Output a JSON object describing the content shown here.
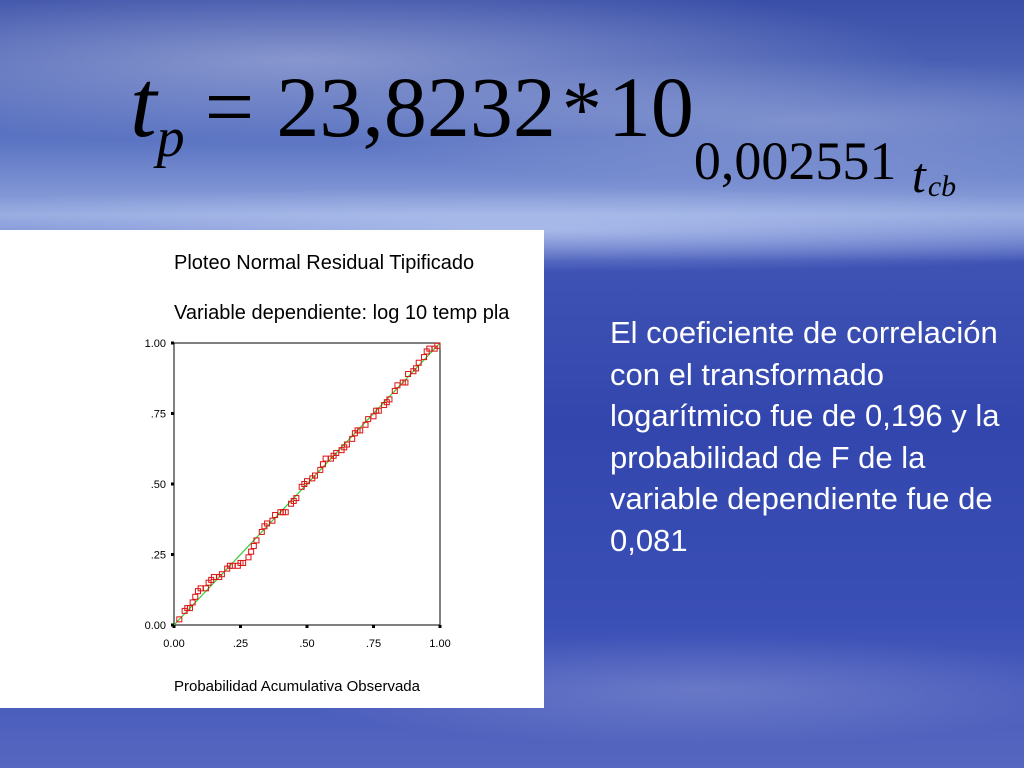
{
  "formula": {
    "lhs_var": "t",
    "lhs_sub": "p",
    "equals": "=",
    "coefficient": "23,8232",
    "times": "*",
    "base": "10",
    "exponent_num": "0,002551",
    "exponent_var": "t",
    "exponent_sub": "cb"
  },
  "chart_data": {
    "type": "scatter",
    "title": "Ploteo Normal Residual Tipificado",
    "subtitle": "Variable dependiente: log 10 temp pla",
    "xlabel": "Probabilidad Acumulativa Observada",
    "ylabel": "",
    "xlim": [
      0,
      1
    ],
    "ylim": [
      0,
      1
    ],
    "x_ticks": [
      "0.00",
      ".25",
      ".50",
      ".75",
      "1.00"
    ],
    "y_ticks": [
      "0.00",
      ".25",
      ".50",
      ".75",
      "1.00"
    ],
    "reference_line": {
      "from": [
        0,
        0
      ],
      "to": [
        1,
        1
      ],
      "color": "#33cc33"
    },
    "marker_color": "#dd1111",
    "points": [
      [
        0.02,
        0.02
      ],
      [
        0.04,
        0.05
      ],
      [
        0.05,
        0.06
      ],
      [
        0.06,
        0.06
      ],
      [
        0.07,
        0.08
      ],
      [
        0.08,
        0.1
      ],
      [
        0.09,
        0.12
      ],
      [
        0.1,
        0.13
      ],
      [
        0.12,
        0.13
      ],
      [
        0.13,
        0.15
      ],
      [
        0.14,
        0.16
      ],
      [
        0.15,
        0.17
      ],
      [
        0.17,
        0.17
      ],
      [
        0.18,
        0.18
      ],
      [
        0.2,
        0.2
      ],
      [
        0.21,
        0.21
      ],
      [
        0.22,
        0.21
      ],
      [
        0.24,
        0.21
      ],
      [
        0.25,
        0.22
      ],
      [
        0.26,
        0.22
      ],
      [
        0.28,
        0.24
      ],
      [
        0.29,
        0.26
      ],
      [
        0.3,
        0.28
      ],
      [
        0.31,
        0.3
      ],
      [
        0.33,
        0.33
      ],
      [
        0.34,
        0.35
      ],
      [
        0.35,
        0.36
      ],
      [
        0.37,
        0.37
      ],
      [
        0.38,
        0.39
      ],
      [
        0.4,
        0.4
      ],
      [
        0.41,
        0.4
      ],
      [
        0.42,
        0.4
      ],
      [
        0.44,
        0.43
      ],
      [
        0.45,
        0.44
      ],
      [
        0.46,
        0.45
      ],
      [
        0.48,
        0.49
      ],
      [
        0.49,
        0.5
      ],
      [
        0.5,
        0.51
      ],
      [
        0.52,
        0.52
      ],
      [
        0.53,
        0.53
      ],
      [
        0.55,
        0.55
      ],
      [
        0.56,
        0.57
      ],
      [
        0.57,
        0.59
      ],
      [
        0.59,
        0.59
      ],
      [
        0.6,
        0.6
      ],
      [
        0.61,
        0.61
      ],
      [
        0.63,
        0.62
      ],
      [
        0.64,
        0.63
      ],
      [
        0.65,
        0.64
      ],
      [
        0.67,
        0.66
      ],
      [
        0.68,
        0.68
      ],
      [
        0.69,
        0.69
      ],
      [
        0.7,
        0.69
      ],
      [
        0.72,
        0.71
      ],
      [
        0.73,
        0.73
      ],
      [
        0.75,
        0.74
      ],
      [
        0.76,
        0.76
      ],
      [
        0.77,
        0.76
      ],
      [
        0.79,
        0.78
      ],
      [
        0.8,
        0.79
      ],
      [
        0.81,
        0.8
      ],
      [
        0.83,
        0.83
      ],
      [
        0.84,
        0.85
      ],
      [
        0.86,
        0.86
      ],
      [
        0.87,
        0.86
      ],
      [
        0.88,
        0.89
      ],
      [
        0.9,
        0.9
      ],
      [
        0.91,
        0.91
      ],
      [
        0.92,
        0.93
      ],
      [
        0.94,
        0.95
      ],
      [
        0.95,
        0.97
      ],
      [
        0.96,
        0.98
      ],
      [
        0.98,
        0.98
      ],
      [
        0.99,
        0.99
      ]
    ]
  },
  "body_text": "El coeficiente de correlación con el transformado logarítmico fue de 0,196 y la probabilidad de F de la variable dependiente fue de 0,081"
}
